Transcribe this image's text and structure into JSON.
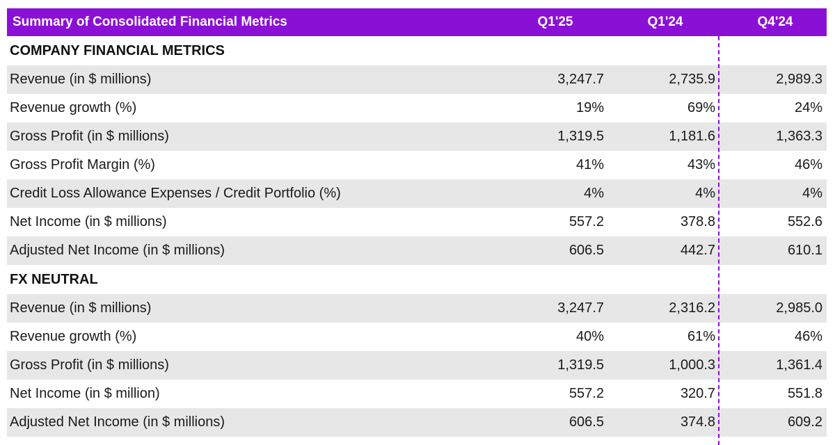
{
  "table": {
    "title": "Summary of Consolidated Financial Metrics",
    "columns": [
      "Q1'25",
      "Q1'24",
      "Q4'24"
    ],
    "sections": [
      {
        "heading": "COMPANY FINANCIAL METRICS",
        "rows": [
          {
            "label": "Revenue (in $ millions)",
            "values": [
              "3,247.7",
              "2,735.9",
              "2,989.3"
            ]
          },
          {
            "label": "Revenue growth (%)",
            "values": [
              "19%",
              "69%",
              "24%"
            ]
          },
          {
            "label": "Gross Profit (in $ millions)",
            "values": [
              "1,319.5",
              "1,181.6",
              "1,363.3"
            ]
          },
          {
            "label": "Gross Profit Margin (%)",
            "values": [
              "41%",
              "43%",
              "46%"
            ]
          },
          {
            "label": "Credit Loss Allowance Expenses / Credit Portfolio (%)",
            "values": [
              "4%",
              "4%",
              "4%"
            ]
          },
          {
            "label": "Net Income (in $ millions)",
            "values": [
              "557.2",
              "378.8",
              "552.6"
            ]
          },
          {
            "label": "Adjusted Net Income (in $ millions)",
            "values": [
              "606.5",
              "442.7",
              "610.1"
            ]
          }
        ]
      },
      {
        "heading": "FX NEUTRAL",
        "rows": [
          {
            "label": "Revenue (in $ millions)",
            "values": [
              "3,247.7",
              "2,316.2",
              "2,985.0"
            ]
          },
          {
            "label": "Revenue growth (%)",
            "values": [
              "40%",
              "61%",
              "46%"
            ]
          },
          {
            "label": "Gross Profit (in $ millions)",
            "values": [
              "1,319.5",
              "1,000.3",
              "1,361.4"
            ]
          },
          {
            "label": "Net Income (in $ million)",
            "values": [
              "557.2",
              "320.7",
              "551.8"
            ]
          },
          {
            "label": "Adjusted Net Income (in $ millions)",
            "values": [
              "606.5",
              "374.8",
              "609.2"
            ]
          }
        ]
      }
    ]
  },
  "colors": {
    "header_bg": "#8b10d6",
    "row_shade": "#e7e7e7",
    "divider": "#8b10d6"
  }
}
